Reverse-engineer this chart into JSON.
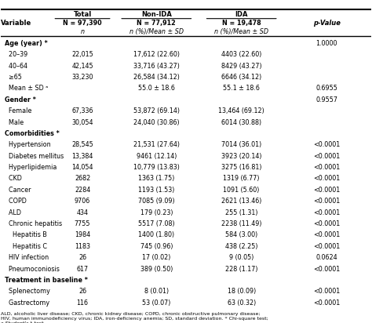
{
  "title": "",
  "col_headers": [
    "Variable",
    "Total\nN = 97,390\nn",
    "Non-IDA\nN = 77,912\nn (%)/Mean ± SD",
    "IDA\nN = 19,478\nn (%)/Mean ± SD",
    "p-Value"
  ],
  "header_row1": [
    "",
    "Total",
    "Non-IDA",
    "IDA",
    ""
  ],
  "header_row2": [
    "",
    "N = 97,390",
    "N = 77,912",
    "N = 19,478",
    "p-Value"
  ],
  "header_row3": [
    "",
    "n",
    "n (%)/Mean ± SD",
    "n (%)/Mean ± SD",
    ""
  ],
  "rows": [
    [
      "Age (year) *",
      "",
      "",
      "",
      "1.0000"
    ],
    [
      "  20–39",
      "22,015",
      "17,612 (22.60)",
      "4403 (22.60)",
      ""
    ],
    [
      "  40–64",
      "42,145",
      "33,716 (43.27)",
      "8429 (43.27)",
      ""
    ],
    [
      "  ≥65",
      "33,230",
      "26,584 (34.12)",
      "6646 (34.12)",
      ""
    ],
    [
      "  Mean ± SD ᵃ",
      "",
      "55.0 ± 18.6",
      "55.1 ± 18.6",
      "0.6955"
    ],
    [
      "Gender *",
      "",
      "",
      "",
      "0.9557"
    ],
    [
      "  Female",
      "67,336",
      "53,872 (69.14)",
      "13,464 (69.12)",
      ""
    ],
    [
      "  Male",
      "30,054",
      "24,040 (30.86)",
      "6014 (30.88)",
      ""
    ],
    [
      "Comorbidities *",
      "",
      "",
      "",
      ""
    ],
    [
      "  Hypertension",
      "28,545",
      "21,531 (27.64)",
      "7014 (36.01)",
      "<0.0001"
    ],
    [
      "  Diabetes mellitus",
      "13,384",
      "9461 (12.14)",
      "3923 (20.14)",
      "<0.0001"
    ],
    [
      "  Hyperlipidemia",
      "14,054",
      "10,779 (13.83)",
      "3275 (16.81)",
      "<0.0001"
    ],
    [
      "  CKD",
      "2682",
      "1363 (1.75)",
      "1319 (6.77)",
      "<0.0001"
    ],
    [
      "  Cancer",
      "2284",
      "1193 (1.53)",
      "1091 (5.60)",
      "<0.0001"
    ],
    [
      "  COPD",
      "9706",
      "7085 (9.09)",
      "2621 (13.46)",
      "<0.0001"
    ],
    [
      "  ALD",
      "434",
      "179 (0.23)",
      "255 (1.31)",
      "<0.0001"
    ],
    [
      "  Chronic hepatitis",
      "7755",
      "5517 (7.08)",
      "2238 (11.49)",
      "<0.0001"
    ],
    [
      "    Hepatitis B",
      "1984",
      "1400 (1.80)",
      "584 (3.00)",
      "<0.0001"
    ],
    [
      "    Hepatitis C",
      "1183",
      "745 (0.96)",
      "438 (2.25)",
      "<0.0001"
    ],
    [
      "  HIV infection",
      "26",
      "17 (0.02)",
      "9 (0.05)",
      "0.0624"
    ],
    [
      "  Pneumoconiosis",
      "617",
      "389 (0.50)",
      "228 (1.17)",
      "<0.0001"
    ],
    [
      "Treatment in baseline *",
      "",
      "",
      "",
      ""
    ],
    [
      "  Splenectomy",
      "26",
      "8 (0.01)",
      "18 (0.09)",
      "<0.0001"
    ],
    [
      "  Gastrectomy",
      "116",
      "53 (0.07)",
      "63 (0.32)",
      "<0.0001"
    ]
  ],
  "footnote": "ALD, alcoholic liver disease; CKD, chronic kidney disease; COPD, chronic obstructive pulmonary disease;\nHIV, human immunodeficiency virus; IDA, iron-deficiency anemia; SD, standard deviation. * Chi-square test;\na Student's t-test.",
  "bg_color": "#ffffff",
  "text_color": "#000000",
  "line_color": "#000000"
}
